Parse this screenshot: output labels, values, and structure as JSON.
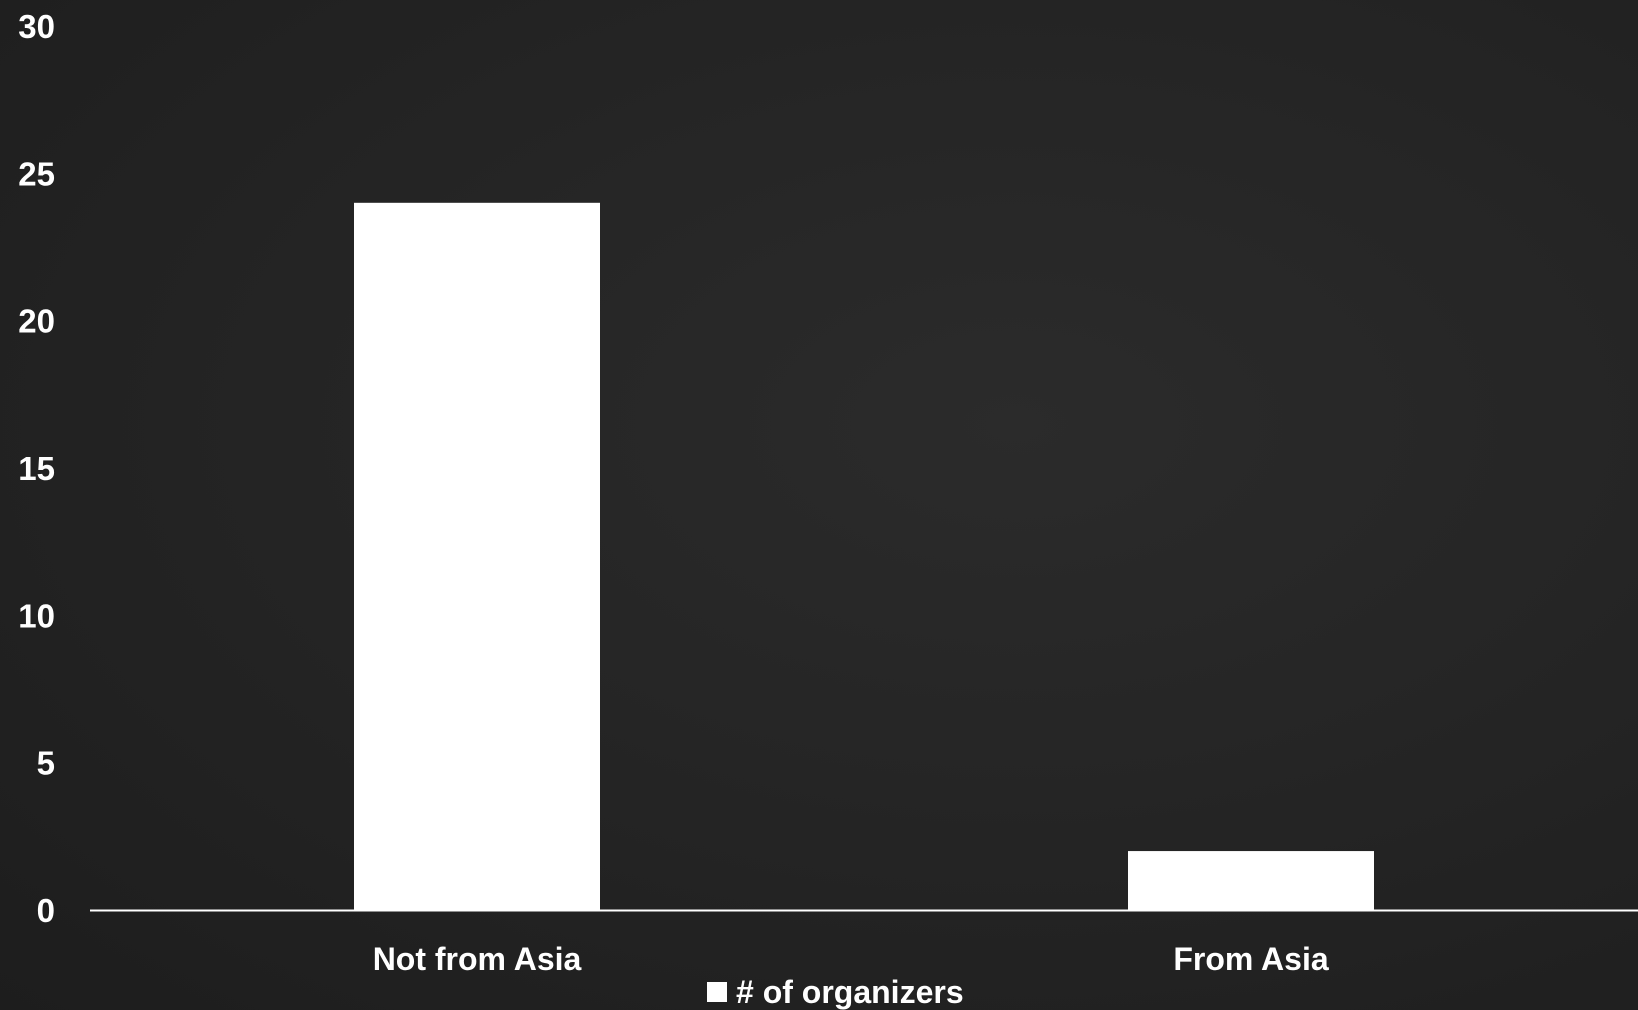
{
  "chart_data": {
    "type": "bar",
    "categories": [
      "Not from Asia",
      "From Asia"
    ],
    "series": [
      {
        "name": "# of organizers",
        "values": [
          24,
          2
        ],
        "color": "#ffffff"
      }
    ],
    "y_ticks": [
      "0",
      "5",
      "10",
      "15",
      "20",
      "25",
      "30"
    ],
    "ylim": [
      0,
      30
    ],
    "grid": false,
    "legend_position": "bottom",
    "colors": {
      "background": "#252525",
      "axis": "#ffffff",
      "text": "#ffffff"
    }
  }
}
